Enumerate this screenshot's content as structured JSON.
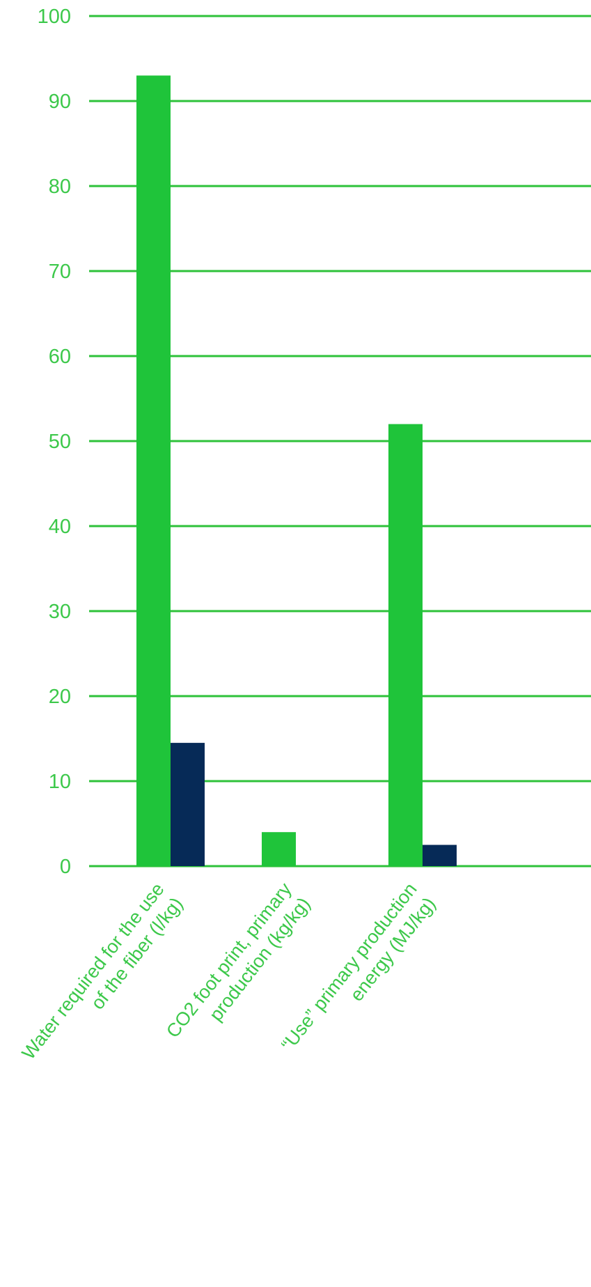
{
  "colors": {
    "gridline": "#2ec23a",
    "tick_label": "#3cc84a",
    "category_label": "#3cc84a",
    "series_primary": "#1fc43a",
    "series_secondary": "#062a57"
  },
  "chart_data": {
    "type": "bar",
    "title": "",
    "xlabel": "",
    "ylabel": "",
    "ylim": [
      0,
      100
    ],
    "y_ticks": [
      0,
      10,
      20,
      30,
      40,
      50,
      60,
      70,
      80,
      90,
      100
    ],
    "grid": true,
    "legend": "none",
    "categories": [
      [
        "Water required for the use",
        "of the fiber (l/kg)"
      ],
      [
        "CO2 foot print, primary",
        "production (kg/kg)"
      ],
      [
        "“Use” primary production",
        "energy (MJ/kg)"
      ]
    ],
    "series": [
      {
        "values": [
          93,
          4,
          52
        ]
      },
      {
        "values": [
          14.5,
          0,
          2.5
        ]
      }
    ]
  }
}
